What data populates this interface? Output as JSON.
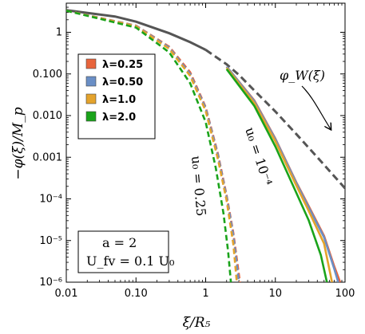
{
  "chart_data": {
    "type": "line",
    "xlabel": "ξ/R₅",
    "ylabel": "−φ(ξ)/M_p",
    "xscale": "log",
    "yscale": "log",
    "xlim": [
      0.01,
      100
    ],
    "ylim": [
      1e-06,
      5
    ],
    "x_ticks": [
      "0.01",
      "0.10",
      "1",
      "10",
      "100"
    ],
    "y_ticks": [
      "1",
      "0.100",
      "0.010",
      "0.001",
      "10⁻⁴",
      "10⁻⁵",
      "10⁻⁶"
    ],
    "legend": {
      "placement": "top-left",
      "entries": [
        {
          "label": "λ=0.25",
          "color": "#e8643c"
        },
        {
          "label": "λ=0.50",
          "color": "#6a8fc6"
        },
        {
          "label": "λ=1.0",
          "color": "#e4a32c"
        },
        {
          "label": "λ=2.0",
          "color": "#1aa31a"
        }
      ]
    },
    "reference_curve": {
      "label": "φ_W(ξ)",
      "color": "#555555",
      "points": [
        [
          0.01,
          3.4
        ],
        [
          0.05,
          2.4
        ],
        [
          0.1,
          1.8
        ],
        [
          0.3,
          0.95
        ],
        [
          0.6,
          0.58
        ],
        [
          1,
          0.38
        ],
        [
          2,
          0.17
        ],
        [
          3,
          0.095
        ],
        [
          5,
          0.04
        ],
        [
          10,
          0.0125
        ],
        [
          20,
          0.0036
        ],
        [
          40,
          0.001
        ],
        [
          100,
          0.00018
        ]
      ]
    },
    "series": [
      {
        "label": "λ=0.25",
        "color": "#e8643c",
        "group": "u0 = 10^-4",
        "style": "solid",
        "points": [
          [
            2,
            0.15
          ],
          [
            5,
            0.023
          ],
          [
            10,
            0.0028
          ],
          [
            20,
            0.00025
          ],
          [
            30,
            6.8e-05
          ],
          [
            50,
            1.3e-05
          ],
          [
            70,
            2.4e-06
          ],
          [
            85,
            1e-06
          ]
        ]
      },
      {
        "label": "λ=0.50",
        "color": "#6a8fc6",
        "group": "u0 = 10^-4",
        "style": "solid",
        "points": [
          [
            2,
            0.15
          ],
          [
            5,
            0.022
          ],
          [
            10,
            0.0027
          ],
          [
            20,
            0.00024
          ],
          [
            30,
            6.3e-05
          ],
          [
            50,
            1.2e-05
          ],
          [
            70,
            2.1e-06
          ],
          [
            80,
            1e-06
          ]
        ]
      },
      {
        "label": "λ=1.0",
        "color": "#e4a32c",
        "group": "u0 = 10^-4",
        "style": "solid",
        "points": [
          [
            2,
            0.14
          ],
          [
            5,
            0.02
          ],
          [
            10,
            0.0024
          ],
          [
            20,
            0.00021
          ],
          [
            30,
            5.2e-05
          ],
          [
            50,
            8.5e-06
          ],
          [
            65,
            1e-06
          ]
        ]
      },
      {
        "label": "λ=2.0",
        "color": "#1aa31a",
        "group": "u0 = 10^-4",
        "style": "solid",
        "points": [
          [
            2,
            0.13
          ],
          [
            5,
            0.017
          ],
          [
            10,
            0.0018
          ],
          [
            20,
            0.00014
          ],
          [
            30,
            3.1e-05
          ],
          [
            45,
            4.5e-06
          ],
          [
            55,
            1e-06
          ]
        ]
      },
      {
        "label": "λ=0.25",
        "color": "#e8643c",
        "group": "u0 = 0.25",
        "style": "dashed",
        "points": [
          [
            0.01,
            3.3
          ],
          [
            0.1,
            1.45
          ],
          [
            0.3,
            0.45
          ],
          [
            0.6,
            0.11
          ],
          [
            1,
            0.016
          ],
          [
            1.5,
            0.0012
          ],
          [
            2,
            0.00012
          ],
          [
            2.5,
            1.5e-05
          ],
          [
            3.1,
            1e-06
          ]
        ]
      },
      {
        "label": "λ=0.50",
        "color": "#6a8fc6",
        "group": "u0 = 0.25",
        "style": "dashed",
        "points": [
          [
            0.01,
            3.3
          ],
          [
            0.1,
            1.43
          ],
          [
            0.3,
            0.43
          ],
          [
            0.6,
            0.1
          ],
          [
            1,
            0.015
          ],
          [
            1.5,
            0.0011
          ],
          [
            2,
            0.00011
          ],
          [
            2.5,
            1.3e-05
          ],
          [
            3.0,
            1e-06
          ]
        ]
      },
      {
        "label": "λ=1.0",
        "color": "#e4a32c",
        "group": "u0 = 0.25",
        "style": "dashed",
        "points": [
          [
            0.01,
            3.3
          ],
          [
            0.1,
            1.4
          ],
          [
            0.3,
            0.4
          ],
          [
            0.6,
            0.09
          ],
          [
            1,
            0.013
          ],
          [
            1.5,
            0.0009
          ],
          [
            2,
            9e-05
          ],
          [
            2.5,
            8e-06
          ],
          [
            2.8,
            1e-06
          ]
        ]
      },
      {
        "label": "λ=2.0",
        "color": "#1aa31a",
        "group": "u0 = 0.25",
        "style": "dashed",
        "points": [
          [
            0.01,
            3.3
          ],
          [
            0.1,
            1.3
          ],
          [
            0.3,
            0.33
          ],
          [
            0.6,
            0.06
          ],
          [
            1,
            0.007
          ],
          [
            1.4,
            0.00055
          ],
          [
            1.8,
            4.5e-05
          ],
          [
            2.1,
            5.5e-06
          ],
          [
            2.3,
            1e-06
          ]
        ]
      }
    ],
    "annotations": {
      "phi_w": "φ_W(ξ)",
      "u0_small": "u₀ = 10⁻⁴",
      "u0_large": "u₀ = 0.25",
      "param_a": "a = 2",
      "param_u": "U_fv = 0.1 U₀"
    }
  }
}
